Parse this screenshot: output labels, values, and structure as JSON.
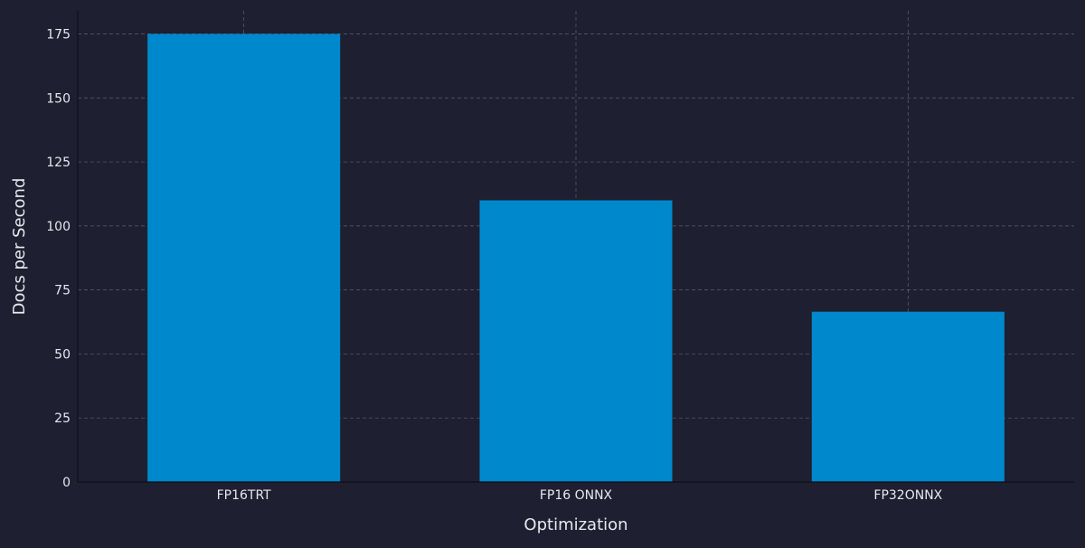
{
  "colors": {
    "background": "#1e1f30",
    "bar": "#0088cc",
    "grid": "#8a8c99",
    "text": "#e8e8ee",
    "axis": "#0e0f1a"
  },
  "chart_data": {
    "type": "bar",
    "categories": [
      "FP16TRT",
      "FP16 ONNX",
      "FP32ONNX"
    ],
    "values": [
      175,
      110,
      66.5
    ],
    "title": "",
    "xlabel": "Optimization",
    "ylabel": "Docs per Second",
    "ylim": [
      0,
      184
    ],
    "yticks": [
      0,
      25,
      50,
      75,
      100,
      125,
      150,
      175
    ],
    "ytick_labels": [
      "0",
      "25",
      "50",
      "75",
      "100",
      "125",
      "150",
      "175"
    ],
    "grid": true,
    "legend": "none"
  }
}
